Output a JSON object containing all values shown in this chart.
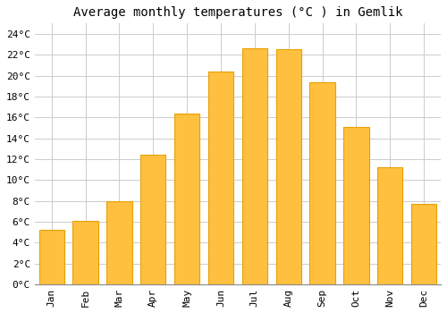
{
  "title": "Average monthly temperatures (°C ) in Gemlik",
  "months": [
    "Jan",
    "Feb",
    "Mar",
    "Apr",
    "May",
    "Jun",
    "Jul",
    "Aug",
    "Sep",
    "Oct",
    "Nov",
    "Dec"
  ],
  "temperatures": [
    5.2,
    6.1,
    8.0,
    12.4,
    16.4,
    20.4,
    22.6,
    22.5,
    19.4,
    15.1,
    11.2,
    7.7
  ],
  "bar_color": "#FFC040",
  "bar_edge_color": "#E8A000",
  "background_color": "#FFFFFF",
  "grid_color": "#CCCCCC",
  "ylim": [
    0,
    25
  ],
  "ytick_step": 2,
  "title_fontsize": 10,
  "tick_fontsize": 8,
  "font_family": "monospace"
}
